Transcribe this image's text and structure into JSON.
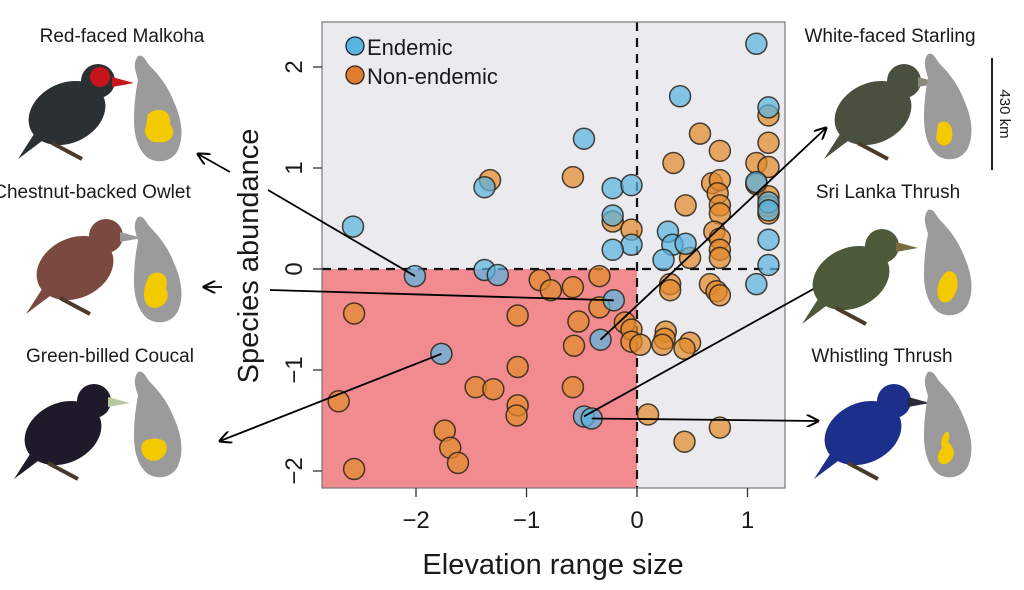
{
  "chart_data": {
    "type": "scatter",
    "title": "",
    "xlabel": "Elevation range size",
    "ylabel": "Species abundance",
    "xlim": [
      -2.85,
      1.33
    ],
    "ylim": [
      -2.18,
      2.45
    ],
    "x_ticks": [
      -2,
      -1,
      0,
      1
    ],
    "x_tick_labels": [
      "−2",
      "−1",
      "0",
      "1"
    ],
    "y_ticks": [
      -2,
      -1,
      0,
      1,
      2
    ],
    "y_tick_labels": [
      "−2",
      "−1",
      "0",
      "1",
      "2"
    ],
    "grid": false,
    "legend": {
      "placement": "top-left",
      "entries": [
        "Endemic",
        "Non-endemic"
      ]
    },
    "reference_lines": {
      "x": 0,
      "y": 0,
      "style": "dashed"
    },
    "highlight_quadrant": {
      "x_range": [
        -2.85,
        0
      ],
      "y_range": [
        -2.18,
        0
      ],
      "color": "#f28b8f"
    },
    "background_color": "#ebebef",
    "colors": {
      "Endemic": "#5ab4e0",
      "Non-endemic": "#e28a2c"
    },
    "series": [
      {
        "name": "Endemic",
        "points": [
          [
            -2.57,
            0.42
          ],
          [
            -1.38,
            0.81
          ],
          [
            -0.48,
            1.29
          ],
          [
            -0.22,
            0.8
          ],
          [
            -0.05,
            0.83
          ],
          [
            -0.22,
            0.53
          ],
          [
            -0.05,
            0.24
          ],
          [
            -0.22,
            0.19
          ],
          [
            1.08,
            2.23
          ],
          [
            0.39,
            1.71
          ],
          [
            1.19,
            1.6
          ],
          [
            1.08,
            0.86
          ],
          [
            1.19,
            0.66
          ],
          [
            1.19,
            0.58
          ],
          [
            1.19,
            0.29
          ],
          [
            0.28,
            0.37
          ],
          [
            0.32,
            0.24
          ],
          [
            0.44,
            0.25
          ],
          [
            0.24,
            0.09
          ],
          [
            1.19,
            0.04
          ],
          [
            1.08,
            -0.15
          ],
          [
            -2.01,
            -0.07
          ],
          [
            -1.38,
            -0.01
          ],
          [
            -1.26,
            -0.06
          ],
          [
            -0.21,
            -0.31
          ],
          [
            -0.33,
            -0.7
          ],
          [
            -1.77,
            -0.84
          ],
          [
            -0.48,
            -1.46
          ],
          [
            -0.41,
            -1.48
          ]
        ]
      },
      {
        "name": "Non-endemic",
        "points": [
          [
            -1.33,
            0.88
          ],
          [
            -0.58,
            0.91
          ],
          [
            -0.22,
            0.47
          ],
          [
            -0.05,
            0.39
          ],
          [
            1.19,
            1.52
          ],
          [
            0.57,
            1.34
          ],
          [
            0.75,
            1.17
          ],
          [
            1.19,
            1.25
          ],
          [
            0.33,
            1.05
          ],
          [
            1.08,
            1.05
          ],
          [
            1.19,
            1.01
          ],
          [
            1.08,
            0.84
          ],
          [
            0.68,
            0.85
          ],
          [
            0.75,
            0.88
          ],
          [
            0.73,
            0.75
          ],
          [
            0.44,
            0.63
          ],
          [
            0.75,
            0.63
          ],
          [
            0.75,
            0.55
          ],
          [
            1.19,
            0.72
          ],
          [
            1.19,
            0.62
          ],
          [
            1.19,
            0.55
          ],
          [
            0.7,
            0.37
          ],
          [
            0.75,
            0.3
          ],
          [
            0.48,
            0.11
          ],
          [
            0.75,
            0.19
          ],
          [
            0.75,
            0.11
          ],
          [
            0.3,
            -0.15
          ],
          [
            0.3,
            -0.21
          ],
          [
            0.66,
            -0.15
          ],
          [
            0.72,
            -0.22
          ],
          [
            0.75,
            -0.26
          ],
          [
            -0.34,
            -0.07
          ],
          [
            -0.58,
            -0.18
          ],
          [
            -0.88,
            -0.11
          ],
          [
            -0.78,
            -0.21
          ],
          [
            -0.34,
            -0.38
          ],
          [
            -0.53,
            -0.52
          ],
          [
            -0.57,
            -0.76
          ],
          [
            -0.11,
            -0.53
          ],
          [
            -0.05,
            -0.6
          ],
          [
            -0.05,
            -0.72
          ],
          [
            0.03,
            -0.75
          ],
          [
            0.26,
            -0.62
          ],
          [
            0.25,
            -0.69
          ],
          [
            0.48,
            -0.73
          ],
          [
            0.23,
            -0.75
          ],
          [
            0.43,
            -0.79
          ],
          [
            -2.56,
            -0.44
          ],
          [
            -1.08,
            -0.46
          ],
          [
            -1.08,
            -0.97
          ],
          [
            -2.7,
            -1.31
          ],
          [
            -1.46,
            -1.17
          ],
          [
            -1.3,
            -1.19
          ],
          [
            -1.08,
            -1.35
          ],
          [
            -1.09,
            -1.45
          ],
          [
            -0.58,
            -1.17
          ],
          [
            0.1,
            -1.44
          ],
          [
            -1.74,
            -1.6
          ],
          [
            -1.69,
            -1.77
          ],
          [
            -1.62,
            -1.92
          ],
          [
            -2.56,
            -1.98
          ],
          [
            0.43,
            -1.71
          ],
          [
            0.75,
            -1.57
          ]
        ]
      }
    ],
    "annotations": [
      {
        "species": "Red-faced Malkoha",
        "side": "left",
        "point": [
          -2.01,
          -0.07
        ]
      },
      {
        "species": "Chestnut-backed Owlet",
        "side": "left",
        "point": [
          -0.21,
          -0.31
        ]
      },
      {
        "species": "Green-billed Coucal",
        "side": "left",
        "point": [
          -1.77,
          -0.84
        ]
      },
      {
        "species": "White-faced Starling",
        "side": "right",
        "point": [
          -0.33,
          -0.7
        ]
      },
      {
        "species": "Sri Lanka Thrush",
        "side": "right",
        "point": [
          -0.48,
          -1.46
        ]
      },
      {
        "species": "Whistling Thrush",
        "side": "right",
        "point": [
          -0.41,
          -1.48
        ]
      }
    ],
    "scale_bar_label": "430 km"
  },
  "species_panels": [
    {
      "name": "Red-faced Malkoha",
      "bird_color": "#2b3133",
      "accent": "#c8141c"
    },
    {
      "name": "Chestnut-backed Owlet",
      "bird_color": "#7a4a40",
      "accent": "#9a9a9a"
    },
    {
      "name": "Green-billed Coucal",
      "bird_color": "#1f1a2a",
      "accent": "#b8c8a0"
    },
    {
      "name": "White-faced Starling",
      "bird_color": "#4a5040",
      "accent": "#8a8a7a"
    },
    {
      "name": "Sri Lanka Thrush",
      "bird_color": "#4c5a3a",
      "accent": "#7a6a40"
    },
    {
      "name": "Whistling Thrush",
      "bird_color": "#1c2f8a",
      "accent": "#2a2a3a"
    }
  ],
  "map_colors": {
    "island": "#9b9b9b",
    "range": "#f3c900"
  }
}
